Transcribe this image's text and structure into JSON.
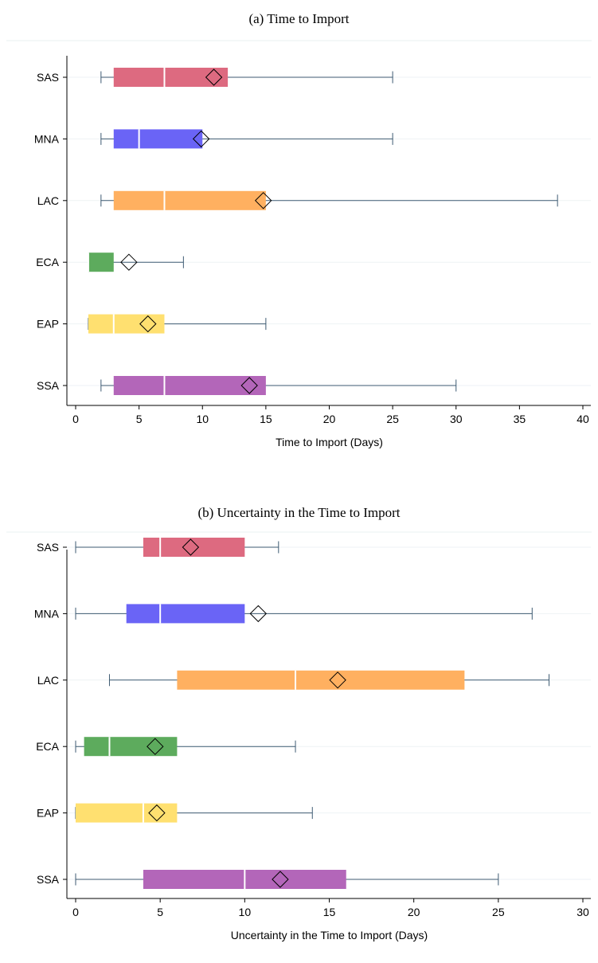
{
  "panels": [
    {
      "title": "(a) Time to Import"
    },
    {
      "title": "(b) Uncertainty in the Time to Import"
    }
  ],
  "chart_data": [
    {
      "type": "boxplot",
      "title": "(a) Time to Import",
      "xlabel": "Time to Import (Days)",
      "ylabel": "",
      "xlim": [
        0,
        40
      ],
      "xticks": [
        0,
        5,
        10,
        15,
        20,
        25,
        30,
        35,
        40
      ],
      "grid": true,
      "legend": "none",
      "categories": [
        "SAS",
        "MNA",
        "LAC",
        "ECA",
        "EAP",
        "SSA"
      ],
      "series": [
        {
          "category": "SAS",
          "color": "#dd6a80",
          "min": 2,
          "q1": 3,
          "median": 7,
          "q3": 12,
          "max": 25,
          "mean": 10.9
        },
        {
          "category": "MNA",
          "color": "#6a64f6",
          "min": 2,
          "q1": 3,
          "median": 5,
          "q3": 10,
          "max": 25,
          "mean": 9.9
        },
        {
          "category": "LAC",
          "color": "#ffb060",
          "min": 2,
          "q1": 3,
          "median": 7,
          "q3": 15,
          "max": 38,
          "mean": 14.8
        },
        {
          "category": "ECA",
          "color": "#5dab5d",
          "min": 1,
          "q1": 1,
          "median": 1,
          "q3": 3,
          "max": 8.5,
          "mean": 4.2
        },
        {
          "category": "EAP",
          "color": "#ffe070",
          "min": 1,
          "q1": 1,
          "median": 3,
          "q3": 7,
          "max": 15,
          "mean": 5.7
        },
        {
          "category": "SSA",
          "color": "#b366b9",
          "min": 2,
          "q1": 3,
          "median": 7,
          "q3": 15,
          "max": 30,
          "mean": 13.7
        }
      ]
    },
    {
      "type": "boxplot",
      "title": "(b) Uncertainty in the Time to Import",
      "xlabel": "Uncertainty in the Time to Import (Days)",
      "ylabel": "",
      "xlim": [
        0,
        30
      ],
      "xticks": [
        0,
        5,
        10,
        15,
        20,
        25,
        30
      ],
      "grid": true,
      "legend": "none",
      "categories": [
        "SAS",
        "MNA",
        "LAC",
        "ECA",
        "EAP",
        "SSA"
      ],
      "series": [
        {
          "category": "SAS",
          "color": "#dd6a80",
          "min": 0,
          "q1": 4,
          "median": 5,
          "q3": 10,
          "max": 12,
          "mean": 6.8
        },
        {
          "category": "MNA",
          "color": "#6a64f6",
          "min": 0,
          "q1": 3,
          "median": 5,
          "q3": 10,
          "max": 27,
          "mean": 10.8
        },
        {
          "category": "LAC",
          "color": "#ffb060",
          "min": 2,
          "q1": 6,
          "median": 13,
          "q3": 23,
          "max": 28,
          "mean": 15.5
        },
        {
          "category": "ECA",
          "color": "#5dab5d",
          "min": 0,
          "q1": 0.5,
          "median": 2,
          "q3": 6,
          "max": 13,
          "mean": 4.7
        },
        {
          "category": "EAP",
          "color": "#ffe070",
          "min": 0,
          "q1": 0,
          "median": 4,
          "q3": 6,
          "max": 14,
          "mean": 4.8
        },
        {
          "category": "SSA",
          "color": "#b366b9",
          "min": 0,
          "q1": 4,
          "median": 10,
          "q3": 16,
          "max": 25,
          "mean": 12.1
        }
      ]
    }
  ]
}
